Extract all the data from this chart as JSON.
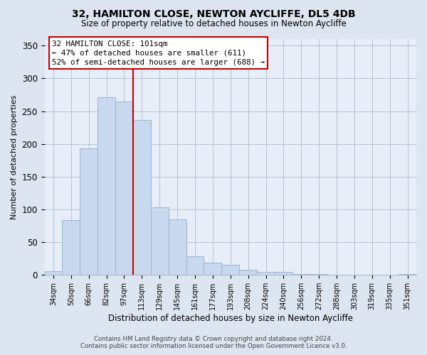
{
  "title": "32, HAMILTON CLOSE, NEWTON AYCLIFFE, DL5 4DB",
  "subtitle": "Size of property relative to detached houses in Newton Aycliffe",
  "xlabel": "Distribution of detached houses by size in Newton Aycliffe",
  "ylabel": "Number of detached properties",
  "bar_color": "#c8d8ee",
  "bar_edge_color": "#9ab4d4",
  "vline_color": "#cc0000",
  "annotation_text": "32 HAMILTON CLOSE: 101sqm\n← 47% of detached houses are smaller (611)\n52% of semi-detached houses are larger (688) →",
  "categories": [
    "34sqm",
    "50sqm",
    "66sqm",
    "82sqm",
    "97sqm",
    "113sqm",
    "129sqm",
    "145sqm",
    "161sqm",
    "177sqm",
    "193sqm",
    "208sqm",
    "224sqm",
    "240sqm",
    "256sqm",
    "272sqm",
    "288sqm",
    "303sqm",
    "319sqm",
    "335sqm",
    "351sqm"
  ],
  "values": [
    6,
    84,
    193,
    271,
    265,
    237,
    103,
    85,
    28,
    19,
    15,
    8,
    5,
    5,
    1,
    1,
    0,
    0,
    0,
    0,
    1
  ],
  "ylim": [
    0,
    360
  ],
  "yticks": [
    0,
    50,
    100,
    150,
    200,
    250,
    300,
    350
  ],
  "footer_line1": "Contains HM Land Registry data © Crown copyright and database right 2024.",
  "footer_line2": "Contains public sector information licensed under the Open Government Licence v3.0.",
  "bg_color": "#dde5f0",
  "plot_bg_color": "#e8eef8"
}
